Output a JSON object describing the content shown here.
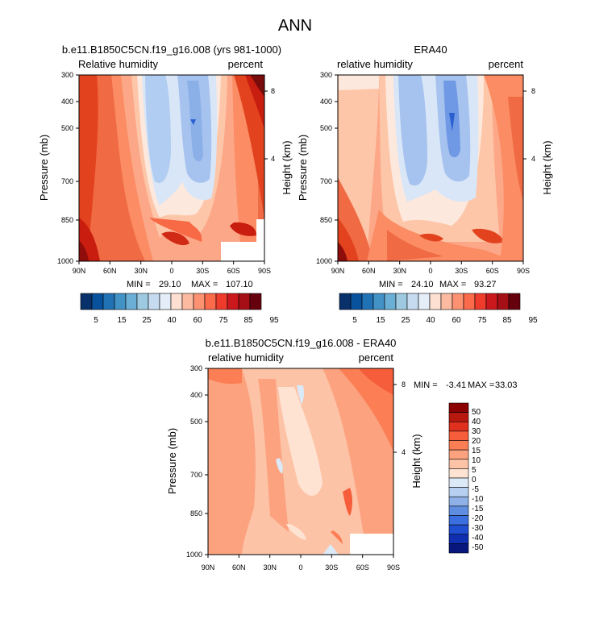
{
  "figure": {
    "title": "ANN"
  },
  "chart_data": [
    {
      "type": "heatmap",
      "title": "b.e11.B1850C5CN.f19_g16.008 (yrs 981-1000)",
      "left_label": "Relative humidity",
      "right_label": "percent",
      "ylabel": "Pressure (mb)",
      "ylabel_right": "Height (km)",
      "x_ticks": [
        "90N",
        "60N",
        "30N",
        "0",
        "30S",
        "60S",
        "90S"
      ],
      "y_ticks": [
        "300",
        "400",
        "500",
        "700",
        "850",
        "1000"
      ],
      "y_ticks_right": [
        "8",
        "4"
      ],
      "stats": {
        "min_label": "MIN =",
        "min": "29.10",
        "max_label": "MAX =",
        "max": "107.10"
      },
      "colorbar": {
        "orientation": "horizontal",
        "tick_labels": [
          "5",
          "15",
          "25",
          "40",
          "60",
          "75",
          "85",
          "95"
        ],
        "colors": [
          "#08306b",
          "#08519c",
          "#2171b5",
          "#4292c6",
          "#6baed6",
          "#9ecae1",
          "#c6dbef",
          "#e5eef8",
          "#fee0d2",
          "#fcbba1",
          "#fc9272",
          "#fb6a4a",
          "#ef3b2c",
          "#cb181d",
          "#a50f15",
          "#67000d"
        ]
      }
    },
    {
      "type": "heatmap",
      "title": "ERA40",
      "left_label": "relative humidity",
      "right_label": "percent",
      "ylabel": "Pressure (mb)",
      "ylabel_right": "Height (km)",
      "x_ticks": [
        "90N",
        "60N",
        "30N",
        "0",
        "30S",
        "60S",
        "90S"
      ],
      "y_ticks": [
        "300",
        "400",
        "500",
        "700",
        "850",
        "1000"
      ],
      "y_ticks_right": [
        "8",
        "4"
      ],
      "stats": {
        "min_label": "MIN =",
        "min": "24.10",
        "max_label": "MAX =",
        "max": "93.27"
      },
      "colorbar": {
        "orientation": "horizontal",
        "tick_labels": [
          "5",
          "15",
          "25",
          "40",
          "60",
          "75",
          "85",
          "95"
        ],
        "colors": [
          "#08306b",
          "#08519c",
          "#2171b5",
          "#4292c6",
          "#6baed6",
          "#9ecae1",
          "#c6dbef",
          "#e5eef8",
          "#fee0d2",
          "#fcbba1",
          "#fc9272",
          "#fb6a4a",
          "#ef3b2c",
          "#cb181d",
          "#a50f15",
          "#67000d"
        ]
      }
    },
    {
      "type": "heatmap",
      "title": "b.e11.B1850C5CN.f19_g16.008 - ERA40",
      "left_label": "relative humidity",
      "right_label": "percent",
      "ylabel": "Pressure (mb)",
      "ylabel_right": "Height (km)",
      "x_ticks": [
        "90N",
        "60N",
        "30N",
        "0",
        "30S",
        "60S",
        "90S"
      ],
      "y_ticks": [
        "300",
        "400",
        "500",
        "700",
        "850",
        "1000"
      ],
      "y_ticks_right": [
        "8",
        "4"
      ],
      "stats": {
        "min_label": "MIN =",
        "min": "-3.41",
        "max_label": "MAX =",
        "max": "33.03"
      },
      "colorbar": {
        "orientation": "vertical",
        "tick_labels": [
          "50",
          "40",
          "30",
          "20",
          "15",
          "10",
          "5",
          "0",
          "-5",
          "-10",
          "-15",
          "-20",
          "-30",
          "-40",
          "-50"
        ],
        "colors": [
          "#8b0000",
          "#b8190f",
          "#e0301e",
          "#f65d3a",
          "#fb7e55",
          "#fca27f",
          "#fdc3a7",
          "#fee3d3",
          "#dce9f7",
          "#b7cff0",
          "#8fb1e8",
          "#5f8ee0",
          "#3b6fe0",
          "#1f4fd0",
          "#0f2fb0",
          "#08177e"
        ]
      }
    }
  ]
}
